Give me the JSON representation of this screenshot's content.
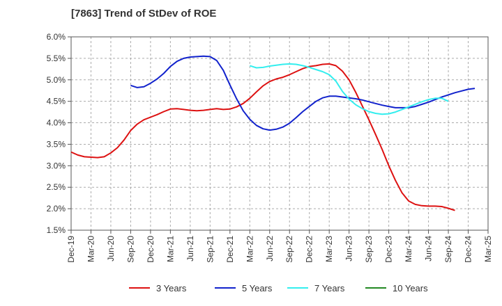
{
  "chart_data": {
    "type": "line",
    "title": "[7863]  Trend of StDev of ROE",
    "xlabel": "",
    "ylabel": "",
    "x_ticks": [
      "Dec-19",
      "Mar-20",
      "Jun-20",
      "Sep-20",
      "Dec-20",
      "Mar-21",
      "Jun-21",
      "Sep-21",
      "Dec-21",
      "Mar-22",
      "Jun-22",
      "Sep-22",
      "Dec-22",
      "Mar-23",
      "Jun-23",
      "Sep-23",
      "Dec-23",
      "Mar-24",
      "Jun-24",
      "Sep-24",
      "Dec-24",
      "Mar-25"
    ],
    "y_ticks": [
      "1.5%",
      "2.0%",
      "2.5%",
      "3.0%",
      "3.5%",
      "4.0%",
      "4.5%",
      "5.0%",
      "5.5%",
      "6.0%"
    ],
    "ylim": [
      1.5,
      6.0
    ],
    "grid": true,
    "legend_position": "bottom",
    "series": [
      {
        "name": "3 Years",
        "color": "#dd1111",
        "points": [
          [
            0,
            3.32
          ],
          [
            1,
            3.25
          ],
          [
            2,
            3.21
          ],
          [
            3,
            3.2
          ],
          [
            4,
            3.19
          ],
          [
            5,
            3.21
          ],
          [
            6,
            3.3
          ],
          [
            7,
            3.42
          ],
          [
            8,
            3.6
          ],
          [
            9,
            3.82
          ],
          [
            10,
            3.97
          ],
          [
            11,
            4.07
          ],
          [
            12,
            4.13
          ],
          [
            13,
            4.19
          ],
          [
            14,
            4.26
          ],
          [
            15,
            4.32
          ],
          [
            16,
            4.33
          ],
          [
            17,
            4.31
          ],
          [
            18,
            4.29
          ],
          [
            19,
            4.28
          ],
          [
            20,
            4.29
          ],
          [
            21,
            4.31
          ],
          [
            22,
            4.33
          ],
          [
            23,
            4.31
          ],
          [
            24,
            4.32
          ],
          [
            25,
            4.37
          ],
          [
            26,
            4.45
          ],
          [
            27,
            4.57
          ],
          [
            28,
            4.72
          ],
          [
            29,
            4.86
          ],
          [
            30,
            4.96
          ],
          [
            31,
            5.02
          ],
          [
            32,
            5.06
          ],
          [
            33,
            5.12
          ],
          [
            34,
            5.19
          ],
          [
            35,
            5.26
          ],
          [
            36,
            5.31
          ],
          [
            37,
            5.33
          ],
          [
            38,
            5.36
          ],
          [
            39,
            5.37
          ],
          [
            40,
            5.33
          ],
          [
            41,
            5.2
          ],
          [
            42,
            5.0
          ],
          [
            43,
            4.71
          ],
          [
            44,
            4.39
          ],
          [
            45,
            4.07
          ],
          [
            46,
            3.73
          ],
          [
            47,
            3.38
          ],
          [
            48,
            3.0
          ],
          [
            49,
            2.66
          ],
          [
            50,
            2.37
          ],
          [
            51,
            2.18
          ],
          [
            52,
            2.1
          ],
          [
            53,
            2.07
          ],
          [
            54,
            2.06
          ],
          [
            55,
            2.06
          ],
          [
            56,
            2.05
          ],
          [
            57,
            2.01
          ],
          [
            58,
            1.96
          ]
        ]
      },
      {
        "name": "5 Years",
        "color": "#1122cc",
        "points": [
          [
            9,
            4.87
          ],
          [
            10,
            4.82
          ],
          [
            11,
            4.84
          ],
          [
            12,
            4.92
          ],
          [
            13,
            5.02
          ],
          [
            14,
            5.15
          ],
          [
            15,
            5.31
          ],
          [
            16,
            5.43
          ],
          [
            17,
            5.5
          ],
          [
            18,
            5.53
          ],
          [
            19,
            5.54
          ],
          [
            20,
            5.55
          ],
          [
            21,
            5.54
          ],
          [
            22,
            5.45
          ],
          [
            23,
            5.22
          ],
          [
            24,
            4.88
          ],
          [
            25,
            4.56
          ],
          [
            26,
            4.28
          ],
          [
            27,
            4.08
          ],
          [
            28,
            3.94
          ],
          [
            29,
            3.86
          ],
          [
            30,
            3.83
          ],
          [
            31,
            3.85
          ],
          [
            32,
            3.9
          ],
          [
            33,
            3.99
          ],
          [
            34,
            4.12
          ],
          [
            35,
            4.26
          ],
          [
            36,
            4.38
          ],
          [
            37,
            4.5
          ],
          [
            38,
            4.58
          ],
          [
            39,
            4.62
          ],
          [
            40,
            4.62
          ],
          [
            41,
            4.6
          ],
          [
            42,
            4.58
          ],
          [
            43,
            4.56
          ],
          [
            44,
            4.53
          ],
          [
            45,
            4.49
          ],
          [
            46,
            4.45
          ],
          [
            47,
            4.41
          ],
          [
            48,
            4.38
          ],
          [
            49,
            4.35
          ],
          [
            50,
            4.35
          ],
          [
            51,
            4.35
          ],
          [
            52,
            4.38
          ],
          [
            53,
            4.43
          ],
          [
            54,
            4.48
          ],
          [
            55,
            4.54
          ],
          [
            56,
            4.6
          ],
          [
            57,
            4.65
          ],
          [
            58,
            4.7
          ],
          [
            59,
            4.74
          ],
          [
            60,
            4.78
          ],
          [
            61,
            4.8
          ]
        ]
      },
      {
        "name": "7 Years",
        "color": "#33eeee",
        "points": [
          [
            27,
            5.33
          ],
          [
            28,
            5.28
          ],
          [
            29,
            5.29
          ],
          [
            30,
            5.32
          ],
          [
            31,
            5.34
          ],
          [
            32,
            5.36
          ],
          [
            33,
            5.37
          ],
          [
            34,
            5.36
          ],
          [
            35,
            5.33
          ],
          [
            36,
            5.29
          ],
          [
            37,
            5.24
          ],
          [
            38,
            5.19
          ],
          [
            39,
            5.12
          ],
          [
            40,
            4.97
          ],
          [
            41,
            4.73
          ],
          [
            42,
            4.55
          ],
          [
            43,
            4.42
          ],
          [
            44,
            4.33
          ],
          [
            45,
            4.26
          ],
          [
            46,
            4.22
          ],
          [
            47,
            4.2
          ],
          [
            48,
            4.21
          ],
          [
            49,
            4.25
          ],
          [
            50,
            4.31
          ],
          [
            51,
            4.37
          ],
          [
            52,
            4.43
          ],
          [
            53,
            4.49
          ],
          [
            54,
            4.54
          ],
          [
            55,
            4.57
          ],
          [
            56,
            4.57
          ],
          [
            57,
            4.5
          ]
        ]
      },
      {
        "name": "10 Years",
        "color": "#228822",
        "points": []
      }
    ]
  }
}
